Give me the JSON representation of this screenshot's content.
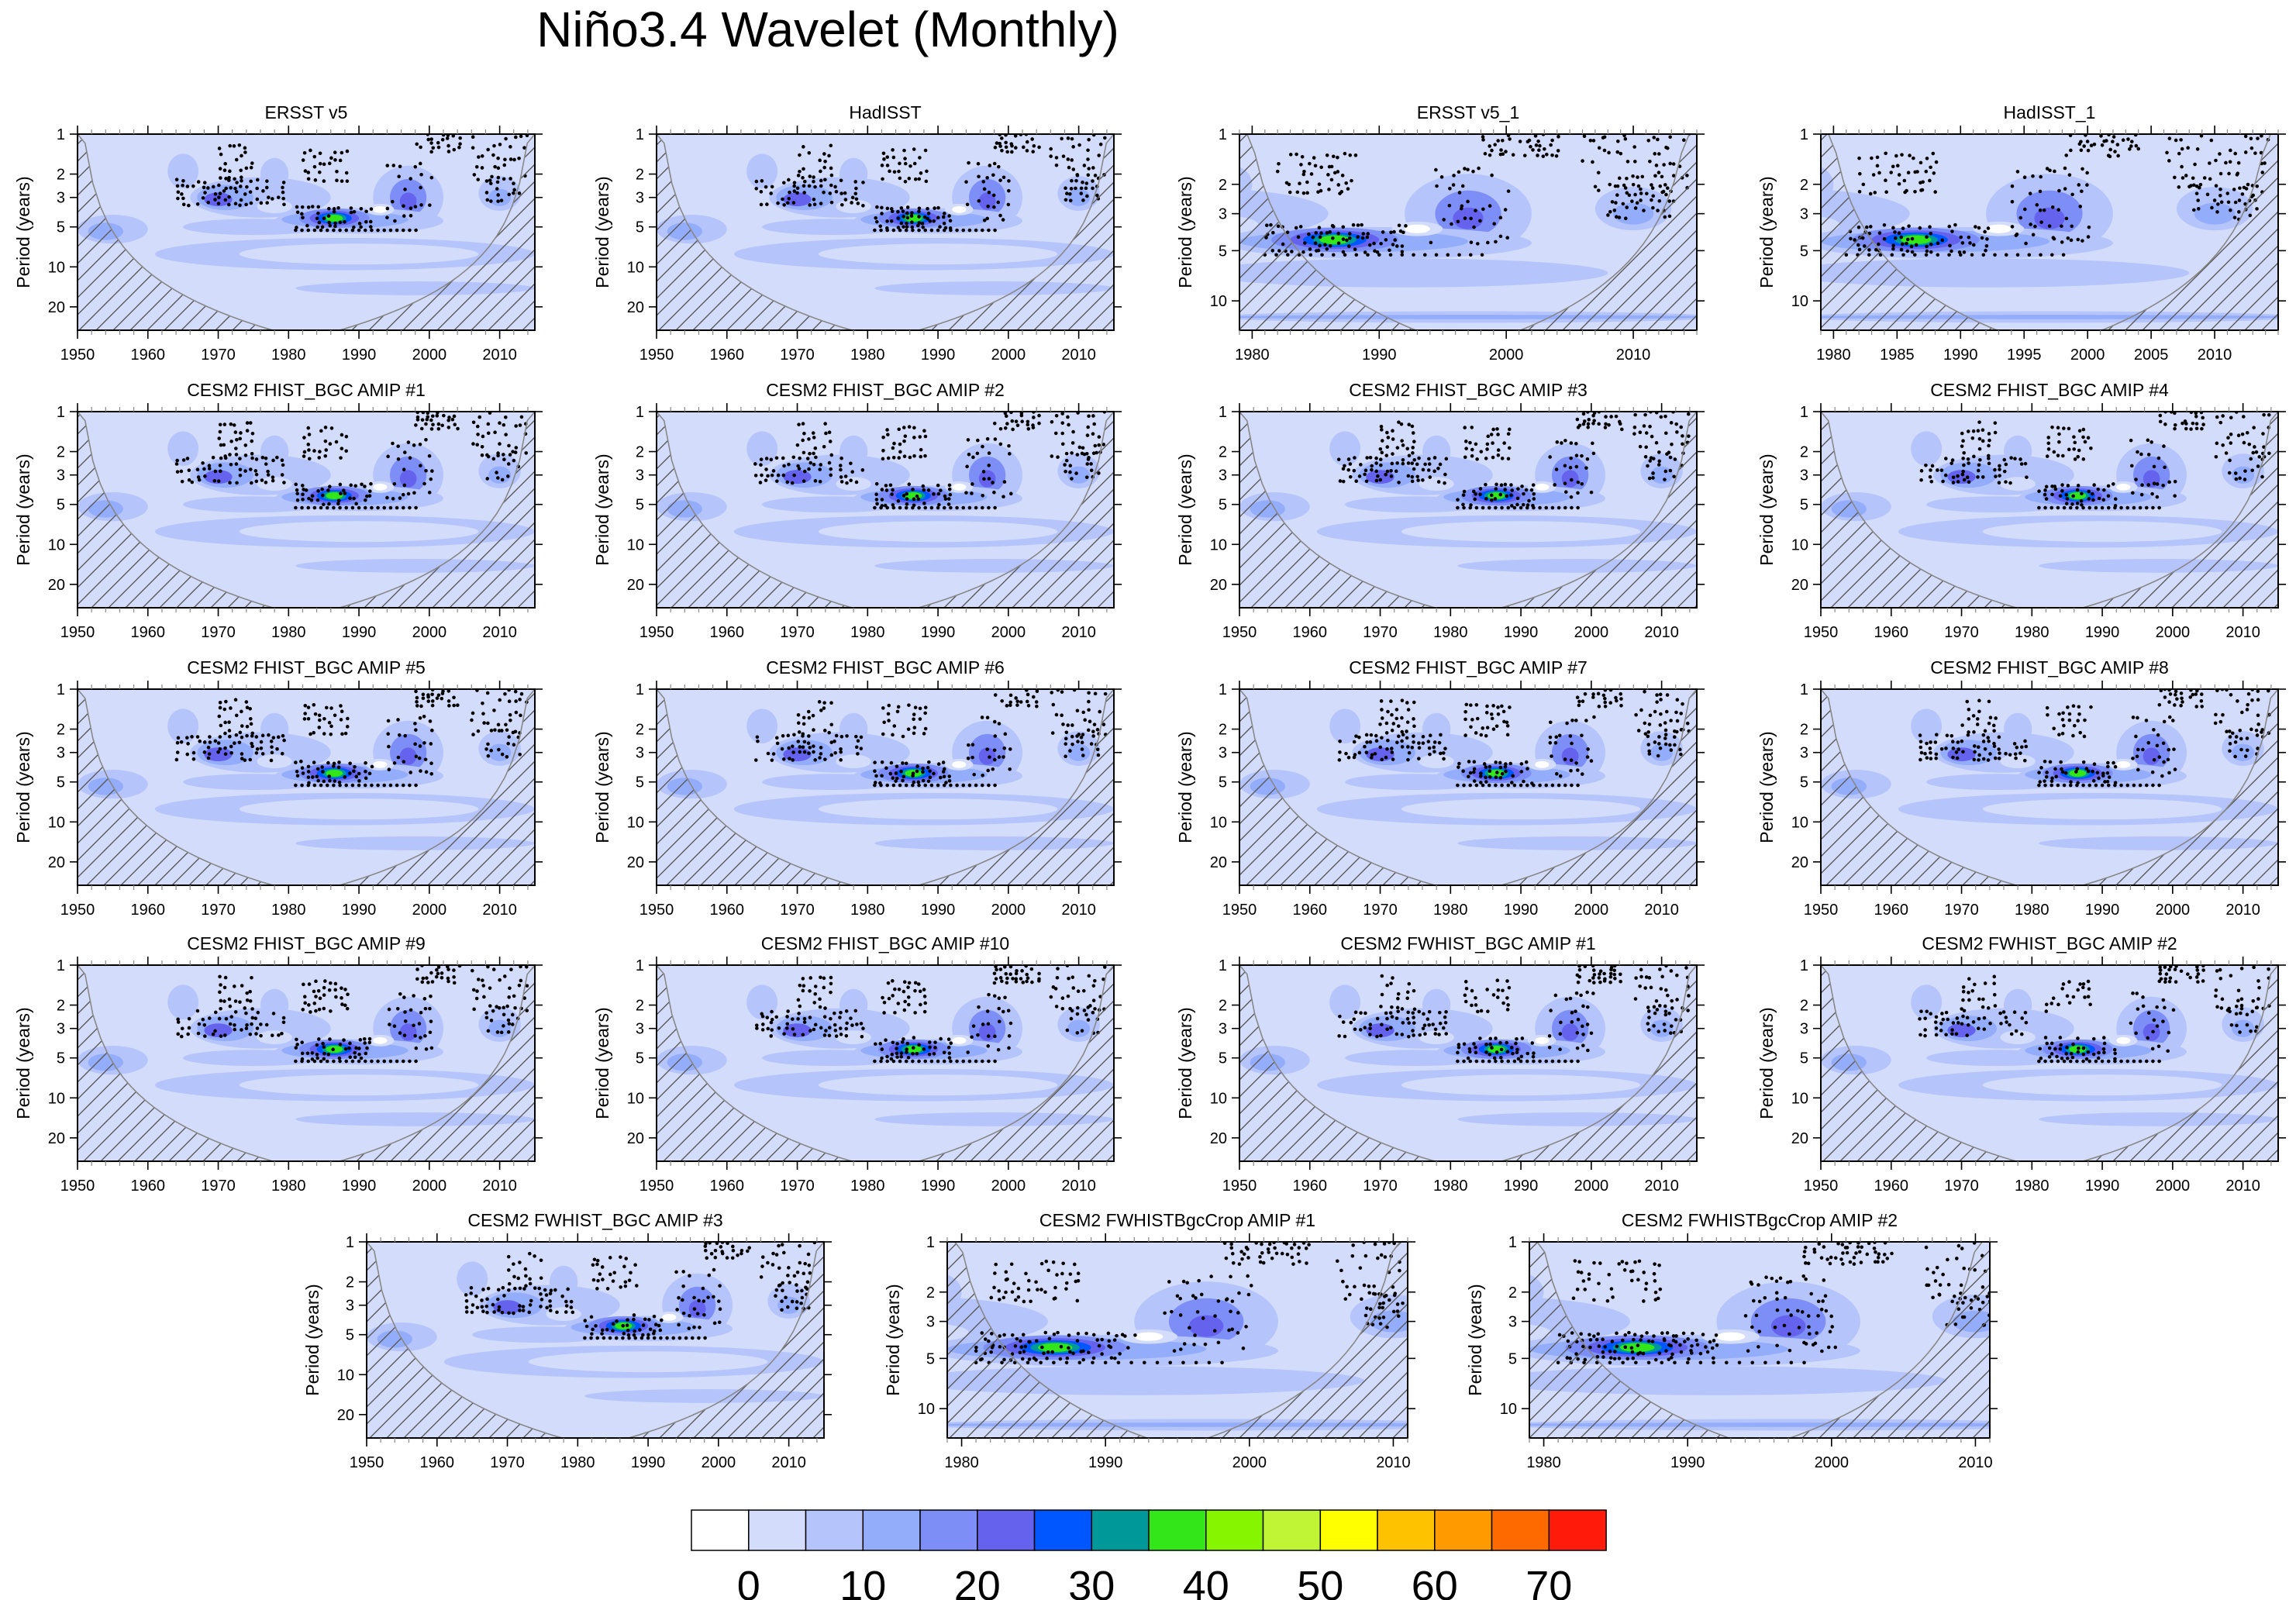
{
  "title": "Niño3.4 Wavelet (Monthly)",
  "colors": {
    "background": "#ffffff",
    "coi_line": "#888888",
    "hatch": "#5a5a5a",
    "stipple": "#000000"
  },
  "chart_data": {
    "type": "heatmap",
    "title": "Niño3.4 Wavelet (Monthly)",
    "ylabel": "Period (years)",
    "y_scale": "log",
    "y_reversed": true,
    "features": {
      "enso_peak_center": [
        1986.5,
        4.3
      ],
      "enso_peak_value": 45,
      "band_5yr": [
        1955,
        2000
      ]
    },
    "colorbar": {
      "levels": [
        0,
        5,
        10,
        15,
        20,
        25,
        30,
        35,
        40,
        45,
        50,
        55,
        60,
        65,
        70
      ],
      "colors": [
        "#ffffff",
        "#d3ddfb",
        "#b5c4fb",
        "#94adfb",
        "#7d8ff7",
        "#6563ee",
        "#0057ff",
        "#009898",
        "#33e61a",
        "#85f500",
        "#c0f535",
        "#ffff00",
        "#ffc200",
        "#ff9a00",
        "#ff6a00",
        "#ff1a0a"
      ],
      "labels": [
        "0",
        "10",
        "20",
        "30",
        "40",
        "50",
        "60",
        "70"
      ],
      "label_values": [
        0,
        10,
        20,
        30,
        40,
        50,
        60,
        70
      ]
    },
    "panels": [
      {
        "title": "ERSST v5",
        "xlim": [
          1950,
          2015
        ],
        "ylim": [
          1,
          30
        ],
        "xticks": [
          "1950",
          "1960",
          "1970",
          "1980",
          "1990",
          "2000",
          "2010"
        ],
        "yticks": [
          "1",
          "2",
          "3",
          "5",
          "10",
          "20"
        ]
      },
      {
        "title": "HadISST",
        "xlim": [
          1950,
          2015
        ],
        "ylim": [
          1,
          30
        ],
        "xticks": [
          "1950",
          "1960",
          "1970",
          "1980",
          "1990",
          "2000",
          "2010"
        ],
        "yticks": [
          "1",
          "2",
          "3",
          "5",
          "10",
          "20"
        ]
      },
      {
        "title": "ERSST v5_1",
        "xlim": [
          1979,
          2015
        ],
        "ylim": [
          1,
          15
        ],
        "xticks": [
          "1980",
          "1990",
          "2000",
          "2010"
        ],
        "yticks": [
          "1",
          "2",
          "3",
          "5",
          "10"
        ]
      },
      {
        "title": "HadISST_1",
        "xlim": [
          1979,
          2015
        ],
        "ylim": [
          1,
          15
        ],
        "xticks": [
          "1980",
          "1985",
          "1990",
          "1995",
          "2000",
          "2005",
          "2010"
        ],
        "yticks": [
          "1",
          "2",
          "3",
          "5",
          "10"
        ]
      },
      {
        "title": "CESM2 FHIST_BGC AMIP #1",
        "xlim": [
          1950,
          2015
        ],
        "ylim": [
          1,
          30
        ],
        "xticks": [
          "1950",
          "1960",
          "1970",
          "1980",
          "1990",
          "2000",
          "2010"
        ],
        "yticks": [
          "1",
          "2",
          "3",
          "5",
          "10",
          "20"
        ]
      },
      {
        "title": "CESM2 FHIST_BGC AMIP #2",
        "xlim": [
          1950,
          2015
        ],
        "ylim": [
          1,
          30
        ],
        "xticks": [
          "1950",
          "1960",
          "1970",
          "1980",
          "1990",
          "2000",
          "2010"
        ],
        "yticks": [
          "1",
          "2",
          "3",
          "5",
          "10",
          "20"
        ]
      },
      {
        "title": "CESM2 FHIST_BGC AMIP #3",
        "xlim": [
          1950,
          2015
        ],
        "ylim": [
          1,
          30
        ],
        "xticks": [
          "1950",
          "1960",
          "1970",
          "1980",
          "1990",
          "2000",
          "2010"
        ],
        "yticks": [
          "1",
          "2",
          "3",
          "5",
          "10",
          "20"
        ]
      },
      {
        "title": "CESM2 FHIST_BGC AMIP #4",
        "xlim": [
          1950,
          2015
        ],
        "ylim": [
          1,
          30
        ],
        "xticks": [
          "1950",
          "1960",
          "1970",
          "1980",
          "1990",
          "2000",
          "2010"
        ],
        "yticks": [
          "1",
          "2",
          "3",
          "5",
          "10",
          "20"
        ]
      },
      {
        "title": "CESM2 FHIST_BGC AMIP #5",
        "xlim": [
          1950,
          2015
        ],
        "ylim": [
          1,
          30
        ],
        "xticks": [
          "1950",
          "1960",
          "1970",
          "1980",
          "1990",
          "2000",
          "2010"
        ],
        "yticks": [
          "1",
          "2",
          "3",
          "5",
          "10",
          "20"
        ]
      },
      {
        "title": "CESM2 FHIST_BGC AMIP #6",
        "xlim": [
          1950,
          2015
        ],
        "ylim": [
          1,
          30
        ],
        "xticks": [
          "1950",
          "1960",
          "1970",
          "1980",
          "1990",
          "2000",
          "2010"
        ],
        "yticks": [
          "1",
          "2",
          "3",
          "5",
          "10",
          "20"
        ]
      },
      {
        "title": "CESM2 FHIST_BGC AMIP #7",
        "xlim": [
          1950,
          2015
        ],
        "ylim": [
          1,
          30
        ],
        "xticks": [
          "1950",
          "1960",
          "1970",
          "1980",
          "1990",
          "2000",
          "2010"
        ],
        "yticks": [
          "1",
          "2",
          "3",
          "5",
          "10",
          "20"
        ]
      },
      {
        "title": "CESM2 FHIST_BGC AMIP #8",
        "xlim": [
          1950,
          2015
        ],
        "ylim": [
          1,
          30
        ],
        "xticks": [
          "1950",
          "1960",
          "1970",
          "1980",
          "1990",
          "2000",
          "2010"
        ],
        "yticks": [
          "1",
          "2",
          "3",
          "5",
          "10",
          "20"
        ]
      },
      {
        "title": "CESM2 FHIST_BGC AMIP #9",
        "xlim": [
          1950,
          2015
        ],
        "ylim": [
          1,
          30
        ],
        "xticks": [
          "1950",
          "1960",
          "1970",
          "1980",
          "1990",
          "2000",
          "2010"
        ],
        "yticks": [
          "1",
          "2",
          "3",
          "5",
          "10",
          "20"
        ]
      },
      {
        "title": "CESM2 FHIST_BGC AMIP #10",
        "xlim": [
          1950,
          2015
        ],
        "ylim": [
          1,
          30
        ],
        "xticks": [
          "1950",
          "1960",
          "1970",
          "1980",
          "1990",
          "2000",
          "2010"
        ],
        "yticks": [
          "1",
          "2",
          "3",
          "5",
          "10",
          "20"
        ]
      },
      {
        "title": "CESM2 FWHIST_BGC AMIP #1",
        "xlim": [
          1950,
          2015
        ],
        "ylim": [
          1,
          30
        ],
        "xticks": [
          "1950",
          "1960",
          "1970",
          "1980",
          "1990",
          "2000",
          "2010"
        ],
        "yticks": [
          "1",
          "2",
          "3",
          "5",
          "10",
          "20"
        ]
      },
      {
        "title": "CESM2 FWHIST_BGC AMIP #2",
        "xlim": [
          1950,
          2015
        ],
        "ylim": [
          1,
          30
        ],
        "xticks": [
          "1950",
          "1960",
          "1970",
          "1980",
          "1990",
          "2000",
          "2010"
        ],
        "yticks": [
          "1",
          "2",
          "3",
          "5",
          "10",
          "20"
        ]
      },
      {
        "title": "CESM2 FWHIST_BGC AMIP #3",
        "xlim": [
          1950,
          2015
        ],
        "ylim": [
          1,
          30
        ],
        "xticks": [
          "1950",
          "1960",
          "1970",
          "1980",
          "1990",
          "2000",
          "2010"
        ],
        "yticks": [
          "1",
          "2",
          "3",
          "5",
          "10",
          "20"
        ]
      },
      {
        "title": "CESM2 FWHISTBgcCrop AMIP #1",
        "xlim": [
          1979,
          2011
        ],
        "ylim": [
          1,
          15
        ],
        "xticks": [
          "1980",
          "1990",
          "2000",
          "2010"
        ],
        "yticks": [
          "1",
          "2",
          "3",
          "5",
          "10"
        ]
      },
      {
        "title": "CESM2 FWHISTBgcCrop AMIP #2",
        "xlim": [
          1979,
          2011
        ],
        "ylim": [
          1,
          15
        ],
        "xticks": [
          "1980",
          "1990",
          "2000",
          "2010"
        ],
        "yticks": [
          "1",
          "2",
          "3",
          "5",
          "10"
        ]
      }
    ]
  }
}
